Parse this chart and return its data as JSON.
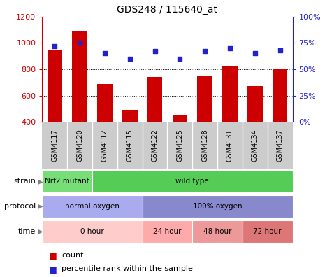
{
  "title": "GDS248 / 115640_at",
  "samples": [
    "GSM4117",
    "GSM4120",
    "GSM4112",
    "GSM4115",
    "GSM4122",
    "GSM4125",
    "GSM4128",
    "GSM4131",
    "GSM4134",
    "GSM4137"
  ],
  "counts": [
    950,
    1090,
    690,
    490,
    740,
    455,
    745,
    825,
    670,
    805
  ],
  "percentiles": [
    72,
    75,
    65,
    60,
    67,
    60,
    67,
    70,
    65,
    68
  ],
  "ylim_left": [
    400,
    1200
  ],
  "ylim_right": [
    0,
    100
  ],
  "yticks_left": [
    400,
    600,
    800,
    1000,
    1200
  ],
  "yticks_right": [
    0,
    25,
    50,
    75,
    100
  ],
  "bar_color": "#cc0000",
  "dot_color": "#2222cc",
  "strain_labels": [
    {
      "text": "Nrf2 mutant",
      "start": 0,
      "end": 2,
      "color": "#77dd77"
    },
    {
      "text": "wild type",
      "start": 2,
      "end": 10,
      "color": "#55cc55"
    }
  ],
  "protocol_labels": [
    {
      "text": "normal oxygen",
      "start": 0,
      "end": 4,
      "color": "#aaaaee"
    },
    {
      "text": "100% oxygen",
      "start": 4,
      "end": 10,
      "color": "#8888cc"
    }
  ],
  "time_labels": [
    {
      "text": "0 hour",
      "start": 0,
      "end": 4,
      "color": "#ffcccc"
    },
    {
      "text": "24 hour",
      "start": 4,
      "end": 6,
      "color": "#ffaaaa"
    },
    {
      "text": "48 hour",
      "start": 6,
      "end": 8,
      "color": "#ee9999"
    },
    {
      "text": "72 hour",
      "start": 8,
      "end": 10,
      "color": "#dd7777"
    }
  ],
  "legend_count_color": "#cc0000",
  "legend_dot_color": "#2222cc",
  "tick_label_color_left": "#cc0000",
  "tick_label_color_right": "#2222cc",
  "sample_bg_color": "#cccccc",
  "plot_bg_color": "#ffffff"
}
